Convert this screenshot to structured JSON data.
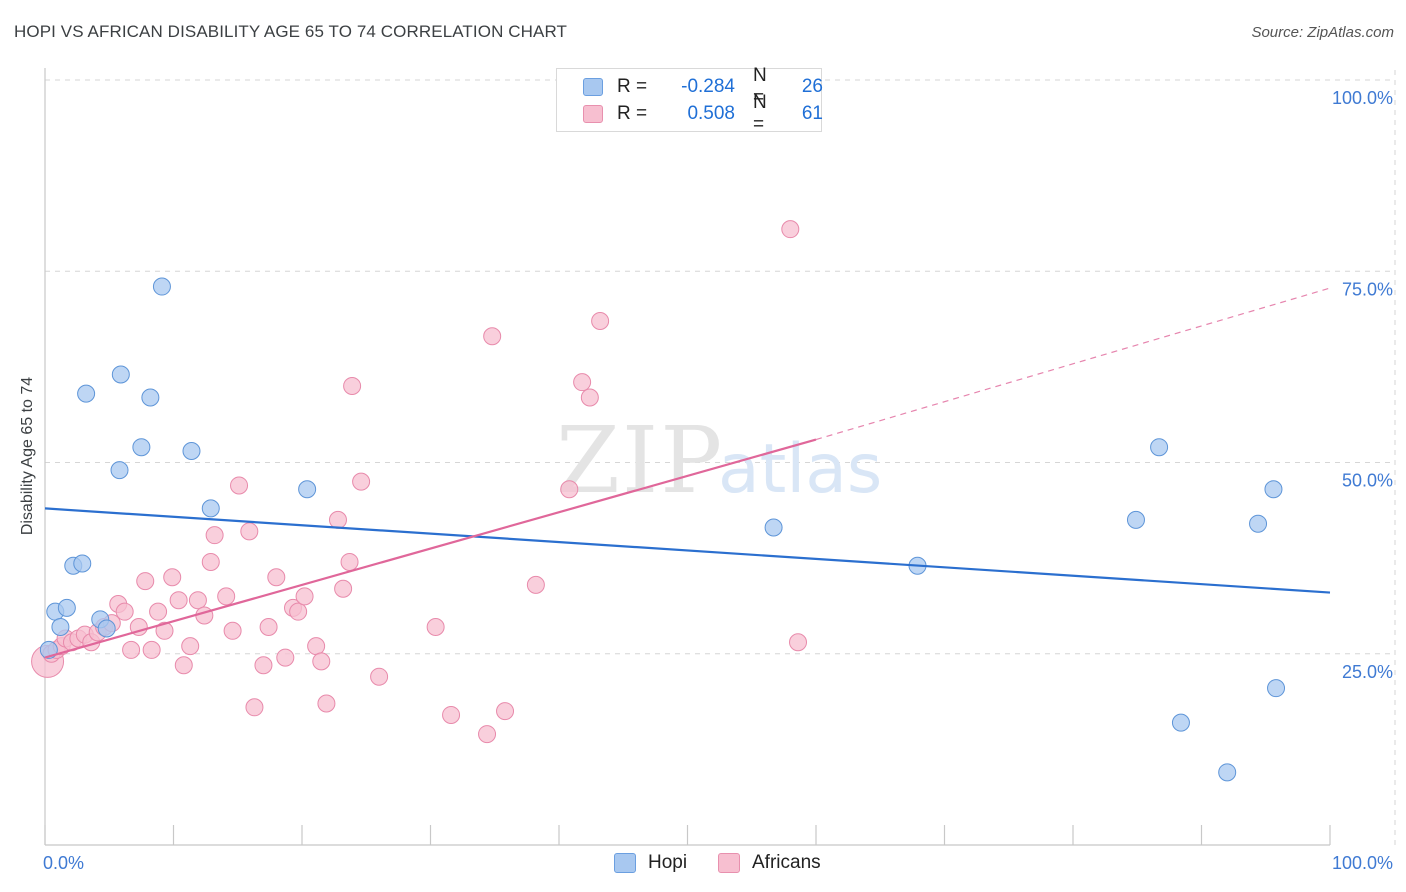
{
  "title": "HOPI VS AFRICAN DISABILITY AGE 65 TO 74 CORRELATION CHART",
  "source": "Source: ZipAtlas.com",
  "watermark": {
    "zip": "ZIP",
    "atlas": "atlas"
  },
  "legend": {
    "rows": [
      {
        "r_label": "R =",
        "r_value": "-0.284",
        "n_label": "N =",
        "n_value": "26",
        "color": "#a8c8f0",
        "border": "#6b9fe0"
      },
      {
        "r_label": "R =",
        "r_value": "0.508",
        "n_label": "N =",
        "n_value": "61",
        "color": "#f7bfd0",
        "border": "#e890ae"
      }
    ]
  },
  "bottom_legend": [
    {
      "label": "Hopi",
      "color": "#a8c8f0",
      "border": "#6b9fe0"
    },
    {
      "label": "Africans",
      "color": "#f7bfd0",
      "border": "#e890ae"
    }
  ],
  "colors": {
    "hopi_fill": "#a8c8f0",
    "hopi_stroke": "#5e95d8",
    "hopi_line": "#2b6fcf",
    "africans_fill": "#f7bfd0",
    "africans_stroke": "#e88aab",
    "africans_line": "#e0679a",
    "axis_label": "#3f7ad3",
    "grid": "#d6d6d6"
  },
  "chart_data": {
    "type": "scatter",
    "title": "HOPI VS AFRICAN DISABILITY AGE 65 TO 74 CORRELATION CHART",
    "xlabel": "",
    "ylabel": "Disability Age 65 to 74",
    "xlim": [
      0,
      100
    ],
    "ylim": [
      0,
      100
    ],
    "x_tick_labels": [
      "0.0%",
      "100.0%"
    ],
    "y_ticks": [
      25,
      50,
      75,
      100
    ],
    "y_tick_labels": [
      "25.0%",
      "50.0%",
      "75.0%",
      "100.0%"
    ],
    "grid": true,
    "series": [
      {
        "name": "Hopi",
        "r": -0.284,
        "n": 26,
        "trend": {
          "x0": 0,
          "y0": 44.0,
          "x1": 100,
          "y1": 33.0
        },
        "points": [
          [
            0.3,
            25.5
          ],
          [
            0.8,
            30.5
          ],
          [
            1.2,
            28.5
          ],
          [
            1.7,
            31.0
          ],
          [
            2.2,
            36.5
          ],
          [
            2.9,
            36.8
          ],
          [
            3.2,
            59.0
          ],
          [
            4.3,
            29.5
          ],
          [
            4.8,
            28.3
          ],
          [
            5.8,
            49.0
          ],
          [
            5.9,
            61.5
          ],
          [
            7.5,
            52.0
          ],
          [
            8.2,
            58.5
          ],
          [
            9.1,
            73.0
          ],
          [
            11.4,
            51.5
          ],
          [
            12.9,
            44.0
          ],
          [
            20.4,
            46.5
          ],
          [
            56.7,
            41.5
          ],
          [
            67.9,
            36.5
          ],
          [
            84.9,
            42.5
          ],
          [
            86.7,
            52.0
          ],
          [
            88.4,
            16.0
          ],
          [
            92.0,
            9.5
          ],
          [
            94.4,
            42.0
          ],
          [
            95.6,
            46.5
          ],
          [
            95.8,
            20.5
          ]
        ]
      },
      {
        "name": "Africans",
        "r": 0.508,
        "n": 61,
        "trend": {
          "x0": 0,
          "y0": 24.5,
          "x1": 60,
          "y1": 53.0,
          "dash_x1": 100,
          "dash_y1": 72.8
        },
        "points": [
          [
            0.2,
            24.0
          ],
          [
            0.5,
            25.0
          ],
          [
            0.9,
            25.5
          ],
          [
            1.3,
            26.0
          ],
          [
            1.6,
            27.0
          ],
          [
            2.1,
            26.5
          ],
          [
            2.6,
            27.0
          ],
          [
            3.1,
            27.5
          ],
          [
            3.6,
            26.5
          ],
          [
            4.1,
            27.8
          ],
          [
            4.6,
            28.5
          ],
          [
            5.2,
            29.0
          ],
          [
            5.7,
            31.5
          ],
          [
            6.2,
            30.5
          ],
          [
            6.7,
            25.5
          ],
          [
            7.3,
            28.5
          ],
          [
            7.8,
            34.5
          ],
          [
            8.3,
            25.5
          ],
          [
            8.8,
            30.5
          ],
          [
            9.3,
            28.0
          ],
          [
            9.9,
            35.0
          ],
          [
            10.4,
            32.0
          ],
          [
            10.8,
            23.5
          ],
          [
            11.3,
            26.0
          ],
          [
            11.9,
            32.0
          ],
          [
            12.4,
            30.0
          ],
          [
            12.9,
            37.0
          ],
          [
            13.2,
            40.5
          ],
          [
            14.1,
            32.5
          ],
          [
            14.6,
            28.0
          ],
          [
            15.1,
            47.0
          ],
          [
            15.9,
            41.0
          ],
          [
            16.3,
            18.0
          ],
          [
            17.0,
            23.5
          ],
          [
            17.4,
            28.5
          ],
          [
            18.0,
            35.0
          ],
          [
            18.7,
            24.5
          ],
          [
            19.3,
            31.0
          ],
          [
            19.7,
            30.5
          ],
          [
            20.2,
            32.5
          ],
          [
            21.1,
            26.0
          ],
          [
            21.5,
            24.0
          ],
          [
            21.9,
            18.5
          ],
          [
            22.8,
            42.5
          ],
          [
            23.2,
            33.5
          ],
          [
            23.7,
            37.0
          ],
          [
            23.9,
            60.0
          ],
          [
            24.6,
            47.5
          ],
          [
            26.0,
            22.0
          ],
          [
            30.4,
            28.5
          ],
          [
            31.6,
            17.0
          ],
          [
            34.4,
            14.5
          ],
          [
            34.8,
            66.5
          ],
          [
            35.8,
            17.5
          ],
          [
            38.2,
            34.0
          ],
          [
            40.8,
            46.5
          ],
          [
            41.8,
            60.5
          ],
          [
            42.4,
            58.5
          ],
          [
            43.2,
            68.5
          ],
          [
            58.0,
            80.5
          ],
          [
            58.6,
            26.5
          ]
        ]
      }
    ]
  }
}
